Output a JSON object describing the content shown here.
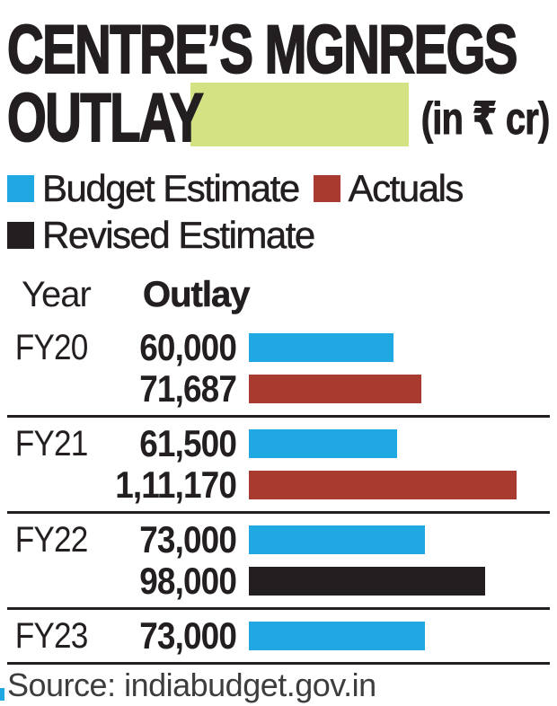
{
  "title": {
    "line1": "CENTRE’S MGNREGS",
    "line2": "OUTLAY",
    "unit": "(in ₹ cr)"
  },
  "colors": {
    "budget": "#1fa8e1",
    "actuals": "#a93a30",
    "revised": "#231f20",
    "highlight": "#d4e283",
    "rule": "#231f20"
  },
  "legend": [
    {
      "label": "Budget Estimate",
      "key": "budget"
    },
    {
      "label": "Actuals",
      "key": "actuals"
    },
    {
      "label": "Revised Estimate",
      "key": "revised"
    }
  ],
  "table": {
    "col_year": "Year",
    "col_outlay": "Outlay"
  },
  "source": "Source: indiabudget.gov.in",
  "chart_data": {
    "type": "bar",
    "orientation": "horizontal",
    "title": "CENTRE’S MGNREGS OUTLAY",
    "unit": "(in ₹ cr)",
    "xlabel": "Outlay (₹ cr)",
    "ylabel": "Year",
    "xmax": 111170,
    "legend_position": "top",
    "series_colors": {
      "Budget Estimate": "#1fa8e1",
      "Actuals": "#a93a30",
      "Revised Estimate": "#231f20"
    },
    "groups": [
      {
        "year": "FY20",
        "rows": [
          {
            "series": "Budget Estimate",
            "key": "budget",
            "value": 60000,
            "display": "60,000"
          },
          {
            "series": "Actuals",
            "key": "actuals",
            "value": 71687,
            "display": "71,687"
          }
        ]
      },
      {
        "year": "FY21",
        "rows": [
          {
            "series": "Budget Estimate",
            "key": "budget",
            "value": 61500,
            "display": "61,500"
          },
          {
            "series": "Actuals",
            "key": "actuals",
            "value": 111170,
            "display": "1,11,170"
          }
        ]
      },
      {
        "year": "FY22",
        "rows": [
          {
            "series": "Budget Estimate",
            "key": "budget",
            "value": 73000,
            "display": "73,000"
          },
          {
            "series": "Revised Estimate",
            "key": "revised",
            "value": 98000,
            "display": "98,000"
          }
        ]
      },
      {
        "year": "FY23",
        "rows": [
          {
            "series": "Budget Estimate",
            "key": "budget",
            "value": 73000,
            "display": "73,000"
          }
        ]
      }
    ]
  }
}
